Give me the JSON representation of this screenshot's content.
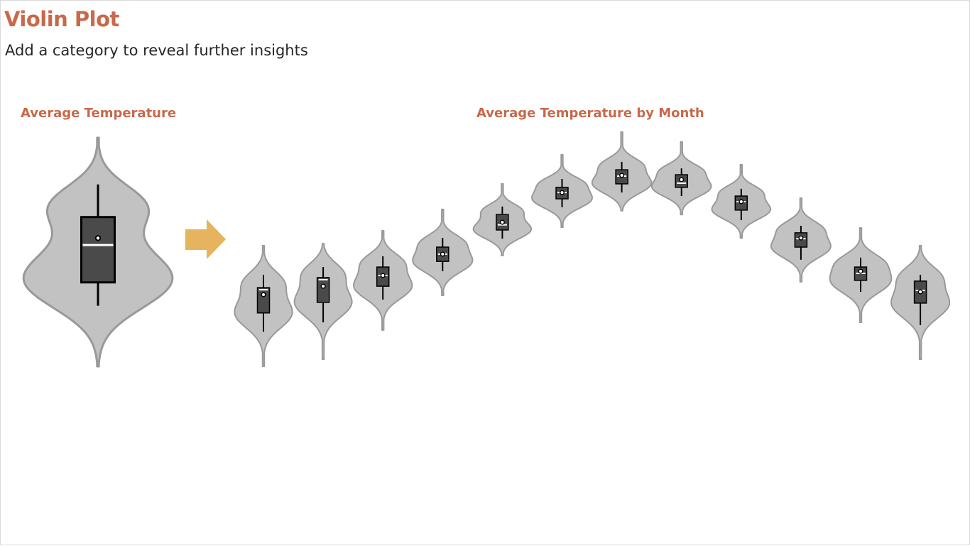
{
  "page": {
    "title": "Violin Plot",
    "subtitle": "Add a category to reveal further insights"
  },
  "colors": {
    "accent": "#c8694a",
    "arrow": "#e6b35e",
    "violin_fill": "#c2c2c2",
    "violin_stroke": "#999999",
    "box_fill": "#4a4a4a"
  },
  "arrow_icon": "right-arrow-icon",
  "chart_data": [
    {
      "type": "violin",
      "title": "Average Temperature",
      "series": [
        {
          "q1": 0.36,
          "median": 0.52,
          "q3": 0.64,
          "mean": 0.55,
          "whisker_low": 0.26,
          "whisker_high": 0.78,
          "min": 0.0,
          "max": 0.98
        }
      ]
    },
    {
      "type": "violin",
      "title": "Average Temperature by Month",
      "series": [
        {
          "q1": 0.228,
          "median": 0.327,
          "q3": 0.336,
          "mean": 0.306,
          "whisker_low": 0.148,
          "whisker_high": 0.391,
          "min": 0.0,
          "max": 0.515
        },
        {
          "q1": 0.273,
          "median": 0.37,
          "q3": 0.379,
          "mean": 0.342,
          "whisker_low": 0.188,
          "whisker_high": 0.424,
          "min": 0.03,
          "max": 0.524
        },
        {
          "q1": 0.342,
          "median": 0.388,
          "q3": 0.424,
          "mean": 0.388,
          "whisker_low": 0.285,
          "whisker_high": 0.47,
          "min": 0.155,
          "max": 0.579
        },
        {
          "q1": 0.448,
          "median": 0.479,
          "q3": 0.509,
          "mean": 0.479,
          "whisker_low": 0.406,
          "whisker_high": 0.548,
          "min": 0.303,
          "max": 0.67
        },
        {
          "q1": 0.582,
          "median": 0.604,
          "q3": 0.648,
          "mean": 0.615,
          "whisker_low": 0.545,
          "whisker_high": 0.682,
          "min": 0.473,
          "max": 0.779
        },
        {
          "q1": 0.715,
          "median": 0.742,
          "q3": 0.764,
          "mean": 0.742,
          "whisker_low": 0.679,
          "whisker_high": 0.8,
          "min": 0.594,
          "max": 0.903
        },
        {
          "q1": 0.779,
          "median": 0.812,
          "q3": 0.839,
          "mean": 0.815,
          "whisker_low": 0.742,
          "whisker_high": 0.873,
          "min": 0.664,
          "max": 1.0
        },
        {
          "q1": 0.764,
          "median": 0.782,
          "q3": 0.818,
          "mean": 0.797,
          "whisker_low": 0.727,
          "whisker_high": 0.845,
          "min": 0.648,
          "max": 0.958
        },
        {
          "q1": 0.667,
          "median": 0.703,
          "q3": 0.727,
          "mean": 0.703,
          "whisker_low": 0.624,
          "whisker_high": 0.758,
          "min": 0.548,
          "max": 0.861
        },
        {
          "q1": 0.509,
          "median": 0.545,
          "q3": 0.57,
          "mean": 0.548,
          "whisker_low": 0.455,
          "whisker_high": 0.6,
          "min": 0.361,
          "max": 0.718
        },
        {
          "q1": 0.367,
          "median": 0.397,
          "q3": 0.424,
          "mean": 0.406,
          "whisker_low": 0.318,
          "whisker_high": 0.464,
          "min": 0.188,
          "max": 0.591
        },
        {
          "q1": 0.27,
          "median": 0.324,
          "q3": 0.364,
          "mean": 0.318,
          "whisker_low": 0.176,
          "whisker_high": 0.391,
          "min": 0.03,
          "max": 0.515
        }
      ]
    }
  ]
}
